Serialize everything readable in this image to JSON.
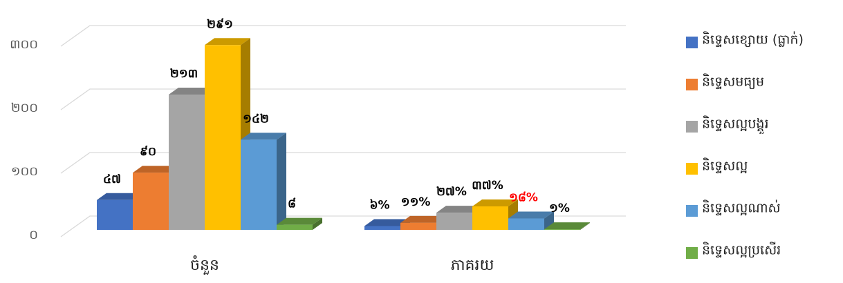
{
  "chart_data": {
    "type": "bar3d",
    "categories": [
      "ចំនួន",
      "ភាគរយ"
    ],
    "ylim": [
      0,
      300
    ],
    "yticks": [
      {
        "value": 0,
        "label": "០"
      },
      {
        "value": 100,
        "label": "១០០"
      },
      {
        "value": 200,
        "label": "២០០"
      },
      {
        "value": 300,
        "label": "៣០០"
      }
    ],
    "grid": true,
    "legend": "right",
    "series": [
      {
        "name": "និទ្ទេសខ្សោយ (ធ្លាក់)",
        "color": "#4472c4",
        "values": [
          47,
          6
        ],
        "value_labels": [
          "៤៧",
          "៦%"
        ],
        "value_label_colors": [
          "#000000",
          "#000000"
        ]
      },
      {
        "name": "និទ្ទេសមធ្យម",
        "color": "#ed7d31",
        "values": [
          90,
          11
        ],
        "value_labels": [
          "៩០",
          "១១%"
        ],
        "value_label_colors": [
          "#000000",
          "#000000"
        ]
      },
      {
        "name": "និទ្ទេសល្អបង្គួរ",
        "color": "#a5a5a5",
        "values": [
          213,
          27
        ],
        "value_labels": [
          "២១៣",
          "២៧%"
        ],
        "value_label_colors": [
          "#000000",
          "#000000"
        ]
      },
      {
        "name": "និទ្ទេសល្អ",
        "color": "#ffc000",
        "values": [
          291,
          37
        ],
        "value_labels": [
          "២៩១",
          "៣៧%"
        ],
        "value_label_colors": [
          "#000000",
          "#000000"
        ]
      },
      {
        "name": "និទ្ទេសល្អណាស់",
        "color": "#5b9bd5",
        "values": [
          142,
          18
        ],
        "value_labels": [
          "១៤២",
          "១៨%"
        ],
        "value_label_colors": [
          "#000000",
          "#ff0000"
        ]
      },
      {
        "name": "និទ្ទេសល្អប្រសើរ",
        "color": "#70ad47",
        "values": [
          8,
          1
        ],
        "value_labels": [
          "៨",
          "១%"
        ],
        "value_label_colors": [
          "#000000",
          "#000000"
        ]
      }
    ]
  }
}
